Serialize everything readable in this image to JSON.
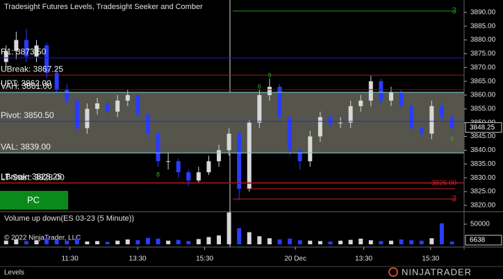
{
  "chart_data": {
    "type": "candlestick",
    "title": "Tradesight Futures Levels, Tradesight Seeker and Comber",
    "xlim": [
      -0.6,
      45.2
    ],
    "xticks": [
      {
        "value": 6.3,
        "label": "11:30"
      },
      {
        "value": 12.98,
        "label": "13:30"
      },
      {
        "value": 19.6,
        "label": "15:30"
      },
      {
        "value": 28.55,
        "label": "20 Dec"
      },
      {
        "value": 35.3,
        "label": "13:30"
      },
      {
        "value": 41.9,
        "label": "15:30"
      }
    ],
    "ylim": [
      3817.7,
      3894.5
    ],
    "yticks": [
      {
        "value": 3820,
        "label": "3820.00"
      },
      {
        "value": 3825,
        "label": "3825.00"
      },
      {
        "value": 3830,
        "label": "3830.00"
      },
      {
        "value": 3835,
        "label": "3835.00"
      },
      {
        "value": 3840,
        "label": "3840.00"
      },
      {
        "value": 3845,
        "label": "3845.00"
      },
      {
        "value": 3850,
        "label": "3850.00"
      },
      {
        "value": 3855,
        "label": "3855.00"
      },
      {
        "value": 3860,
        "label": "3860.00"
      },
      {
        "value": 3865,
        "label": "3865.00"
      },
      {
        "value": 3870,
        "label": "3870.00"
      },
      {
        "value": 3875,
        "label": "3875.00"
      },
      {
        "value": 3880,
        "label": "3880.00"
      },
      {
        "value": 3885,
        "label": "3885.00"
      },
      {
        "value": 3890,
        "label": "3890.00"
      }
    ],
    "open": [
      3872,
      3876,
      3880,
      3874,
      3878,
      3868,
      3862,
      3858,
      3848,
      3855,
      3857,
      3854,
      3858,
      3860,
      3853,
      3846,
      3836,
      3836,
      3832,
      3829,
      3832,
      3836,
      3840,
      3846,
      3826,
      3850,
      3860,
      3863,
      3852,
      3840,
      3836,
      3845,
      3852,
      3850,
      3850,
      3856,
      3858,
      3865,
      3858,
      3861,
      3856,
      3848,
      3846,
      3856,
      3852
    ],
    "high": [
      3878,
      3883,
      3884,
      3880,
      3879,
      3870,
      3864,
      3859,
      3857,
      3859,
      3858,
      3860,
      3862,
      3861,
      3854,
      3847,
      3839,
      3837,
      3833,
      3834,
      3838,
      3842,
      3848,
      3847,
      3851,
      3862,
      3866,
      3864,
      3853,
      3841,
      3847,
      3854,
      3853,
      3852,
      3858,
      3860,
      3867,
      3866,
      3863,
      3862,
      3857,
      3849,
      3858,
      3858,
      3853
    ],
    "low": [
      3870,
      3873,
      3872,
      3872,
      3866,
      3860,
      3856,
      3846,
      3846,
      3853,
      3852,
      3852,
      3856,
      3851,
      3844,
      3834,
      3833,
      3830,
      3827,
      3828,
      3831,
      3834,
      3838,
      3822,
      3825,
      3848,
      3858,
      3850,
      3838,
      3833,
      3834,
      3843,
      3848,
      3848,
      3848,
      3854,
      3856,
      3856,
      3856,
      3854,
      3846,
      3844,
      3844,
      3850,
      3846
    ],
    "close": [
      3876,
      3880,
      3874,
      3878,
      3868,
      3862,
      3858,
      3848,
      3855,
      3857,
      3854,
      3858,
      3860,
      3853,
      3846,
      3836,
      3836,
      3832,
      3829,
      3832,
      3836,
      3840,
      3846,
      3826,
      3850,
      3860,
      3863,
      3852,
      3840,
      3836,
      3845,
      3852,
      3850,
      3850,
      3856,
      3858,
      3865,
      3858,
      3861,
      3856,
      3848,
      3846,
      3856,
      3852,
      3848.25
    ],
    "up_color": "#d8d8d8",
    "down_color": "#2a3cff",
    "last_price": 3848.25,
    "levels": [
      {
        "label": "R1: 3873.50",
        "value": 3873.5,
        "color": "#1c1cc8"
      },
      {
        "label": "UBreak: 3867.25",
        "value": 3867.25,
        "color": "#b01818"
      },
      {
        "label": "UPT: 3862.00",
        "value": 3862,
        "color": "#8b1010"
      },
      {
        "label": "VAH: 3861.00",
        "value": 3861,
        "color": "#7fd6d6"
      },
      {
        "label": "Pivot: 3850.50",
        "value": 3850.5,
        "color": "#2a2ad8"
      },
      {
        "label": "VAL: 3839.00",
        "value": 3839,
        "color": "#7fd6d6"
      },
      {
        "label": "LBreak: 3828.25",
        "value": 3828.25,
        "color": "#b01818"
      },
      {
        "label": "LT-Start: 3828.00",
        "value": 3828,
        "color": "#8b1010"
      }
    ],
    "value_area_color": "#55554b",
    "targets": [
      {
        "label": "3",
        "value": 3890.5,
        "color": "#1f9a1f"
      },
      {
        "label": "3",
        "value": 3822.25,
        "color": "#d02020"
      },
      {
        "label": "3826.00",
        "value": 3826,
        "color": "#d02020"
      }
    ],
    "annotations": [
      {
        "text": "9",
        "bar": 26,
        "price": 3867
      },
      {
        "text": "6",
        "bar": 25,
        "price": 3863
      },
      {
        "text": "8",
        "bar": 15,
        "price": 3831
      },
      {
        "text": "9",
        "bar": 44,
        "price": 3844
      }
    ],
    "volume": {
      "title": "Volume up down(ES 03-23 (5 Minute))",
      "values": [
        9000,
        12000,
        8000,
        10000,
        15000,
        11000,
        9000,
        14000,
        7000,
        8000,
        6000,
        9000,
        12000,
        10000,
        16000,
        14000,
        9000,
        11000,
        8000,
        13000,
        18000,
        22000,
        79000,
        40000,
        30000,
        20000,
        15000,
        12000,
        14000,
        10000,
        9000,
        8000,
        7000,
        9000,
        11000,
        14000,
        10000,
        8000,
        9000,
        12000,
        10000,
        9000,
        15000,
        52000,
        6638
      ],
      "ylim": [
        0,
        81000
      ],
      "yticks": [
        50000
      ]
    }
  },
  "button": "PC",
  "copyright": "© 2022 NinjaTrader, LLC",
  "tab": "Levels",
  "logo": "NINJATRADER"
}
